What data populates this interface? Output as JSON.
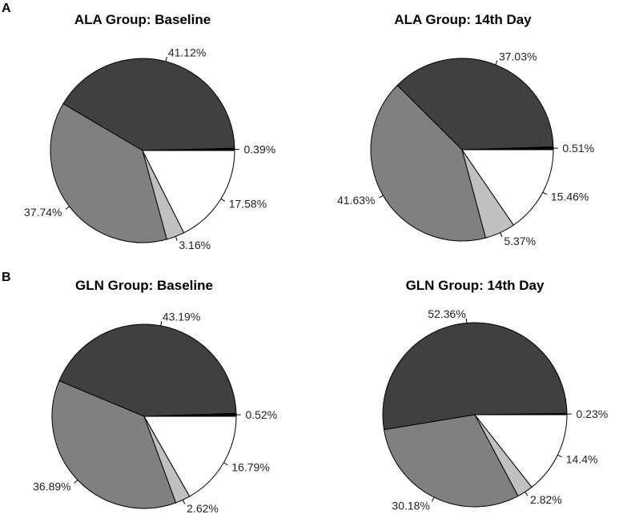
{
  "panels": [
    {
      "label": "A"
    },
    {
      "label": "B"
    }
  ],
  "slice_colors": [
    "#000000",
    "#404040",
    "#808080",
    "#c0c0c0",
    "#ffffff"
  ],
  "chart_data": [
    {
      "type": "pie",
      "panel": "A",
      "title": "ALA Group: Baseline",
      "values": [
        0.39,
        41.12,
        37.74,
        3.16,
        17.58
      ],
      "labels": [
        "0.39%",
        "41.12%",
        "37.74%",
        "3.16%",
        "17.58%"
      ],
      "start_angle_deg": 0,
      "direction": "counterclockwise"
    },
    {
      "type": "pie",
      "panel": "A",
      "title": "ALA Group: 14th Day",
      "values": [
        0.51,
        37.03,
        41.63,
        5.37,
        15.46
      ],
      "labels": [
        "0.51%",
        "37.03%",
        "41.63%",
        "5.37%",
        "15.46%"
      ],
      "start_angle_deg": 0,
      "direction": "counterclockwise"
    },
    {
      "type": "pie",
      "panel": "B",
      "title": "GLN Group: Baseline",
      "values": [
        0.52,
        43.19,
        36.89,
        2.62,
        16.79
      ],
      "labels": [
        "0.52%",
        "43.19%",
        "36.89%",
        "2.62%",
        "16.79%"
      ],
      "start_angle_deg": 0,
      "direction": "counterclockwise"
    },
    {
      "type": "pie",
      "panel": "B",
      "title": "GLN Group: 14th Day",
      "values": [
        0.23,
        52.36,
        30.18,
        2.82,
        14.4
      ],
      "labels": [
        "0.23%",
        "52.36%",
        "30.18%",
        "2.82%",
        "14.4%"
      ],
      "start_angle_deg": 0,
      "direction": "counterclockwise"
    }
  ]
}
